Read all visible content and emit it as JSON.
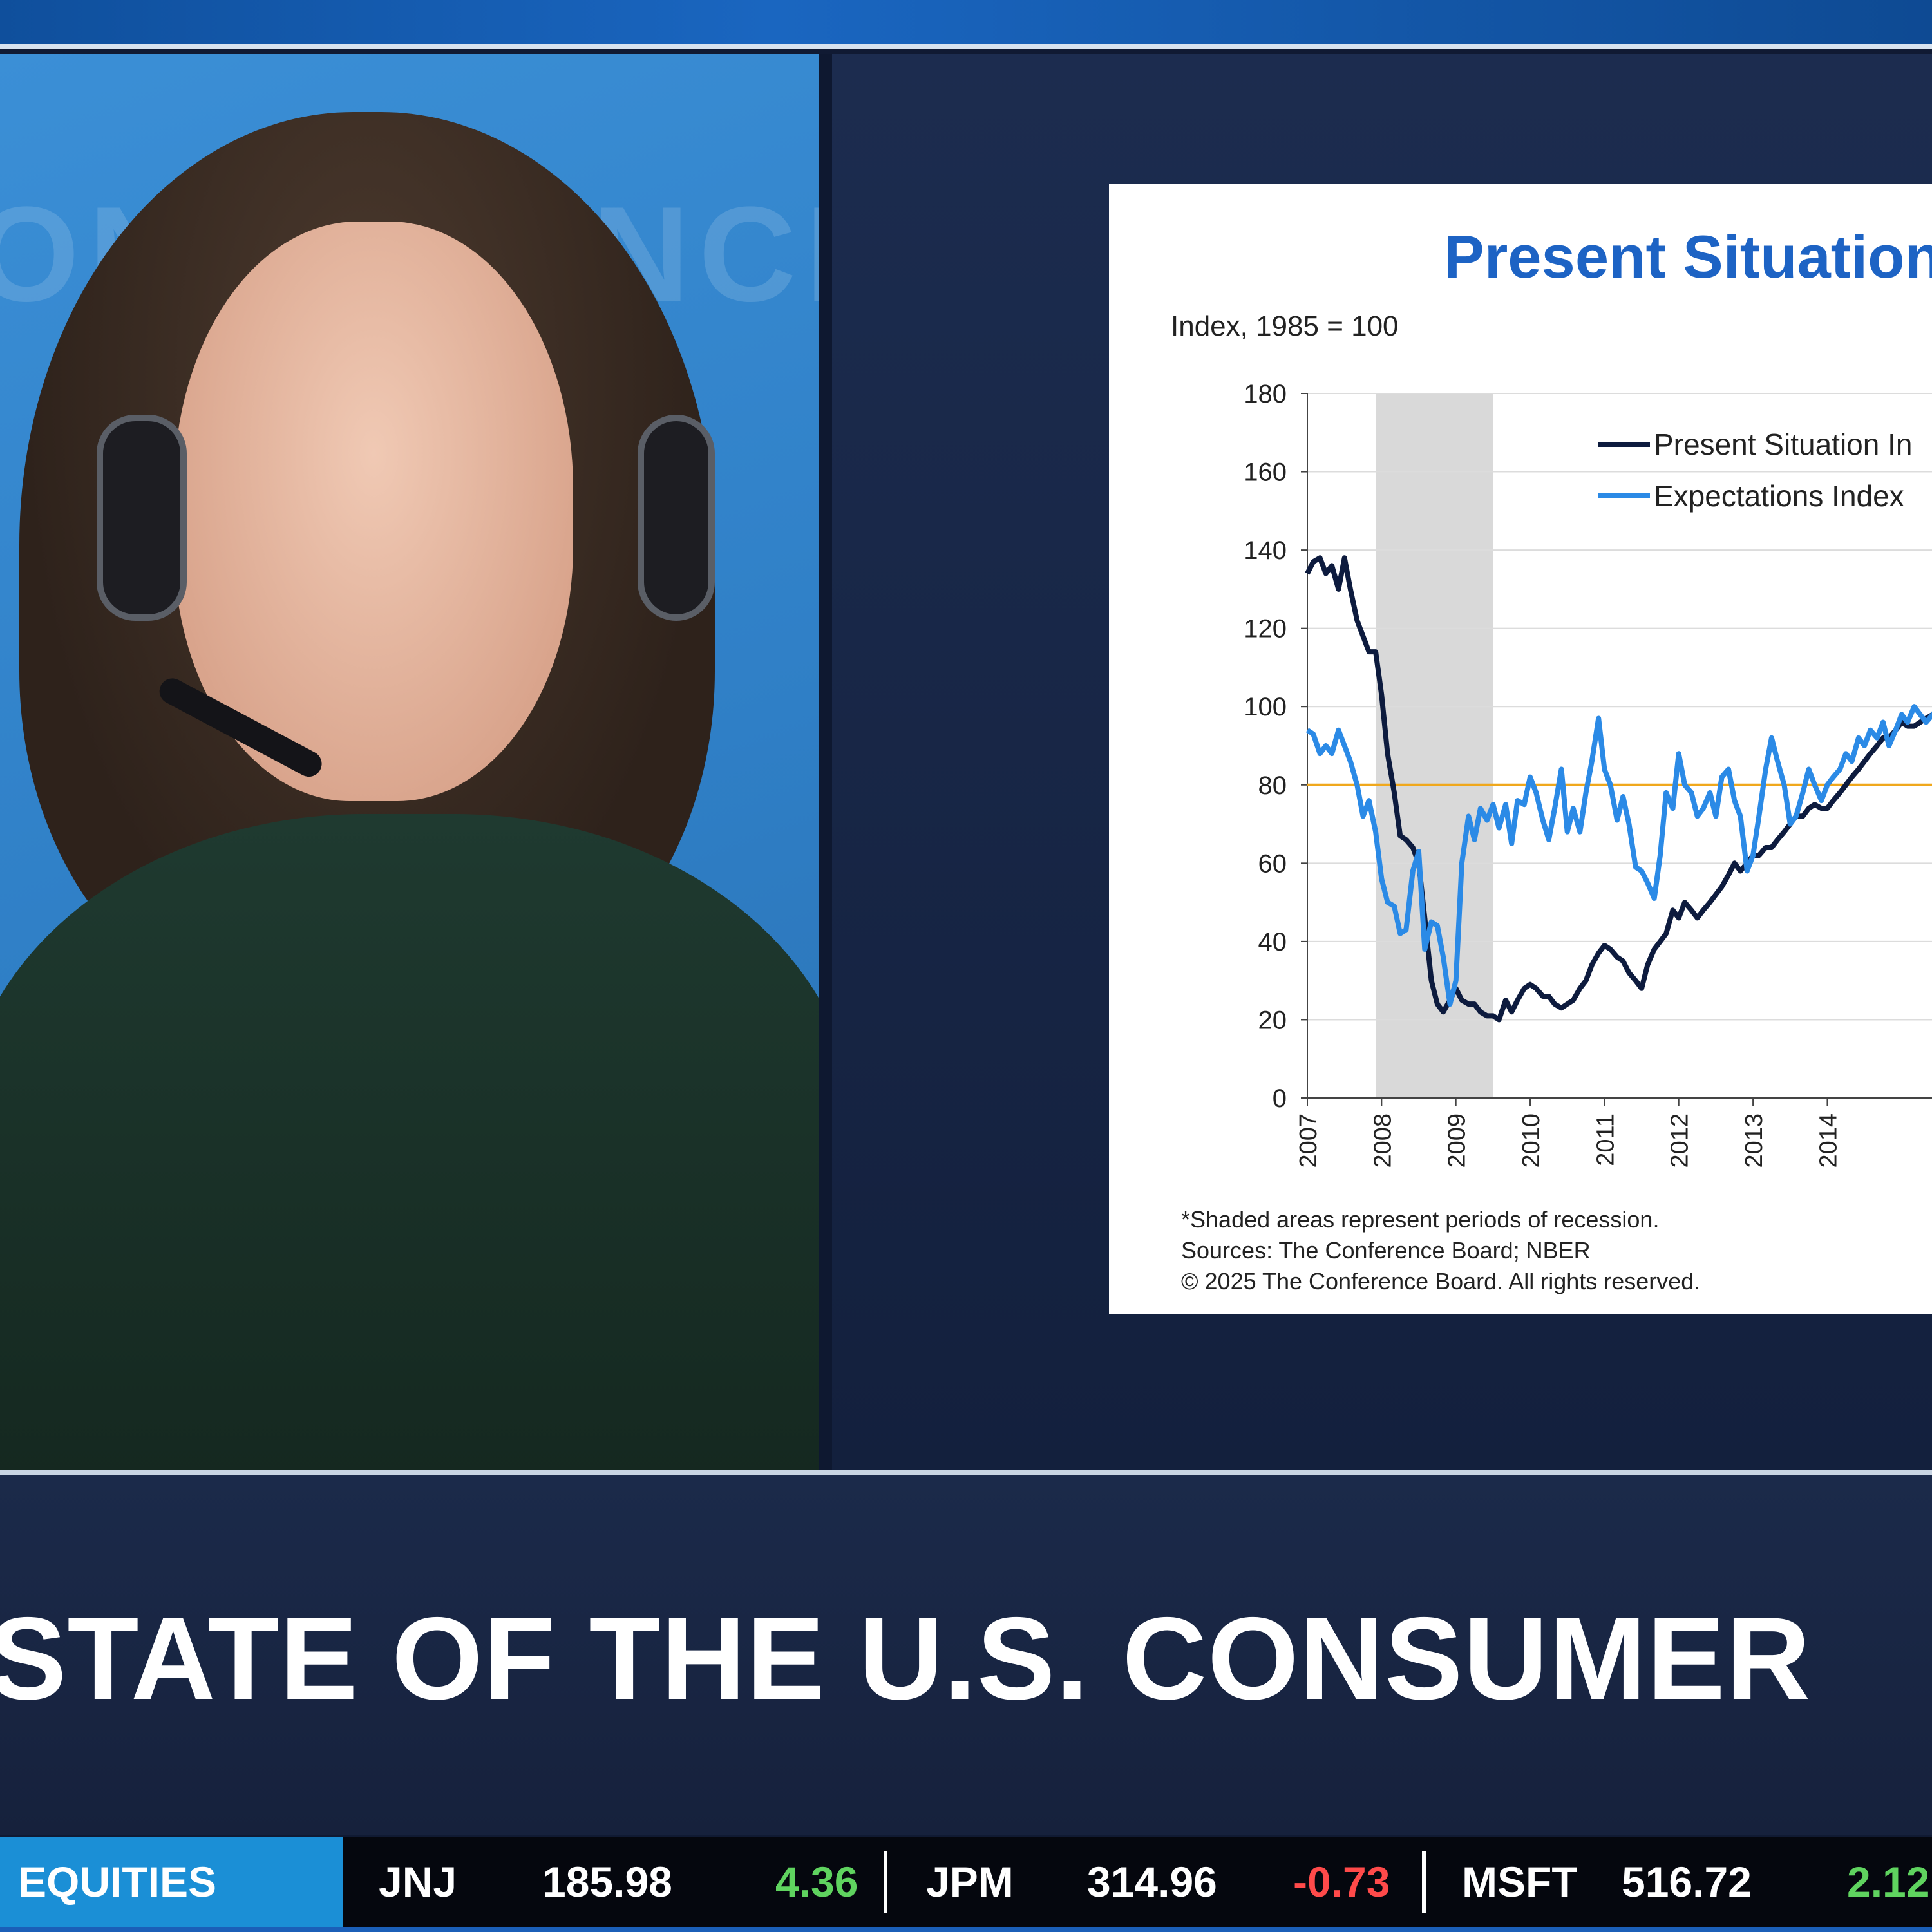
{
  "camera": {
    "background_logo_text": "ONFERENCE"
  },
  "slide": {
    "title": "Present Situation",
    "chart_data": {
      "type": "line",
      "title": "Present Situation",
      "ylabel": "Index, 1985 = 100",
      "ylim": [
        0,
        180
      ],
      "yticks": [
        "0",
        "20",
        "40",
        "60",
        "80",
        "100",
        "120",
        "140",
        "160",
        "180"
      ],
      "xlim": [
        2007,
        2015.6
      ],
      "xticks": [
        "2007",
        "2008",
        "2009",
        "2010",
        "2011",
        "2012",
        "2013",
        "2014"
      ],
      "recession_shading": [
        [
          2007.92,
          2009.5
        ]
      ],
      "reference_line": {
        "y": 80,
        "color": "#f0a81c"
      },
      "legend_position": "top-right",
      "series": [
        {
          "name": "Present Situation In",
          "color": "#0d1b3e",
          "x": [
            2007.0,
            2007.08,
            2007.17,
            2007.25,
            2007.33,
            2007.42,
            2007.5,
            2007.58,
            2007.67,
            2007.75,
            2007.83,
            2007.92,
            2008.0,
            2008.08,
            2008.17,
            2008.25,
            2008.33,
            2008.42,
            2008.5,
            2008.58,
            2008.67,
            2008.75,
            2008.83,
            2008.92,
            2009.0,
            2009.08,
            2009.17,
            2009.25,
            2009.33,
            2009.42,
            2009.5,
            2009.58,
            2009.67,
            2009.75,
            2009.83,
            2009.92,
            2010.0,
            2010.08,
            2010.17,
            2010.25,
            2010.33,
            2010.42,
            2010.5,
            2010.58,
            2010.67,
            2010.75,
            2010.83,
            2010.92,
            2011.0,
            2011.08,
            2011.17,
            2011.25,
            2011.33,
            2011.42,
            2011.5,
            2011.58,
            2011.67,
            2011.75,
            2011.83,
            2011.92,
            2012.0,
            2012.08,
            2012.17,
            2012.25,
            2012.33,
            2012.42,
            2012.5,
            2012.58,
            2012.67,
            2012.75,
            2012.83,
            2012.92,
            2013.0,
            2013.08,
            2013.17,
            2013.25,
            2013.33,
            2013.42,
            2013.5,
            2013.58,
            2013.67,
            2013.75,
            2013.83,
            2013.92,
            2014.0,
            2014.08,
            2014.17,
            2014.25,
            2014.33,
            2014.42,
            2014.5,
            2014.58,
            2014.67,
            2014.75,
            2014.83,
            2014.92,
            2015.0,
            2015.08,
            2015.17,
            2015.25,
            2015.33,
            2015.42,
            2015.5,
            2015.58
          ],
          "values": [
            134,
            137,
            138,
            134,
            136,
            130,
            138,
            130,
            122,
            118,
            114,
            114,
            103,
            88,
            78,
            67,
            66,
            64,
            60,
            46,
            30,
            24,
            22,
            25,
            28,
            25,
            24,
            24,
            22,
            21,
            21,
            20,
            25,
            22,
            25,
            28,
            29,
            28,
            26,
            26,
            24,
            23,
            24,
            25,
            28,
            30,
            34,
            37,
            39,
            38,
            36,
            35,
            32,
            30,
            28,
            34,
            38,
            40,
            42,
            48,
            46,
            50,
            48,
            46,
            48,
            50,
            52,
            54,
            57,
            60,
            58,
            60,
            62,
            62,
            64,
            64,
            66,
            68,
            70,
            72,
            72,
            74,
            75,
            74,
            74,
            76,
            78,
            80,
            82,
            84,
            86,
            88,
            90,
            92,
            92,
            94,
            96,
            95,
            95,
            96,
            97,
            98,
            99,
            100
          ]
        },
        {
          "name": "Expectations Index",
          "color": "#2b8ae6",
          "x": [
            2007.0,
            2007.08,
            2007.17,
            2007.25,
            2007.33,
            2007.42,
            2007.5,
            2007.58,
            2007.67,
            2007.75,
            2007.83,
            2007.92,
            2008.0,
            2008.08,
            2008.17,
            2008.25,
            2008.33,
            2008.42,
            2008.5,
            2008.58,
            2008.67,
            2008.75,
            2008.83,
            2008.92,
            2009.0,
            2009.08,
            2009.17,
            2009.25,
            2009.33,
            2009.42,
            2009.5,
            2009.58,
            2009.67,
            2009.75,
            2009.83,
            2009.92,
            2010.0,
            2010.08,
            2010.17,
            2010.25,
            2010.33,
            2010.42,
            2010.5,
            2010.58,
            2010.67,
            2010.75,
            2010.83,
            2010.92,
            2011.0,
            2011.08,
            2011.17,
            2011.25,
            2011.33,
            2011.42,
            2011.5,
            2011.58,
            2011.67,
            2011.75,
            2011.83,
            2011.92,
            2012.0,
            2012.08,
            2012.17,
            2012.25,
            2012.33,
            2012.42,
            2012.5,
            2012.58,
            2012.67,
            2012.75,
            2012.83,
            2012.92,
            2013.0,
            2013.08,
            2013.17,
            2013.25,
            2013.33,
            2013.42,
            2013.5,
            2013.58,
            2013.67,
            2013.75,
            2013.83,
            2013.92,
            2014.0,
            2014.08,
            2014.17,
            2014.25,
            2014.33,
            2014.42,
            2014.5,
            2014.58,
            2014.67,
            2014.75,
            2014.83,
            2014.92,
            2015.0,
            2015.08,
            2015.17,
            2015.25,
            2015.33,
            2015.42,
            2015.5,
            2015.58
          ],
          "values": [
            94,
            93,
            88,
            90,
            88,
            94,
            90,
            86,
            80,
            72,
            76,
            68,
            56,
            50,
            49,
            42,
            43,
            58,
            63,
            38,
            45,
            44,
            36,
            24,
            30,
            60,
            72,
            66,
            74,
            71,
            75,
            69,
            75,
            65,
            76,
            75,
            82,
            78,
            71,
            66,
            74,
            84,
            68,
            74,
            68,
            78,
            86,
            97,
            84,
            80,
            71,
            77,
            70,
            59,
            58,
            55,
            51,
            62,
            78,
            74,
            88,
            80,
            78,
            72,
            74,
            78,
            72,
            82,
            84,
            76,
            72,
            58,
            62,
            72,
            84,
            92,
            86,
            80,
            70,
            72,
            78,
            84,
            80,
            76,
            80,
            82,
            84,
            88,
            86,
            92,
            90,
            94,
            92,
            96,
            90,
            94,
            98,
            96,
            100,
            98,
            96,
            98,
            100,
            102
          ]
        }
      ]
    },
    "footnotes": [
      "*Shaded areas represent periods of recession.",
      "Sources:  The Conference Board;  NBER",
      "© 2025 The Conference Board. All rights reserved."
    ]
  },
  "lower_third": {
    "headline": "STATE OF THE U.S. CONSUMER"
  },
  "ticker": {
    "label": "EQUITIES",
    "colors": {
      "up": "#5fd35f",
      "down": "#ff4a4a",
      "label_bg": "#1b8fd6"
    },
    "items": [
      {
        "symbol": "JNJ",
        "price": "185.98",
        "change": "4.36",
        "direction": "up"
      },
      {
        "symbol": "JPM",
        "price": "314.96",
        "change": "-0.73",
        "direction": "down"
      },
      {
        "symbol": "MSFT",
        "price": "516.72",
        "change": "2.12",
        "direction": "up"
      }
    ]
  }
}
